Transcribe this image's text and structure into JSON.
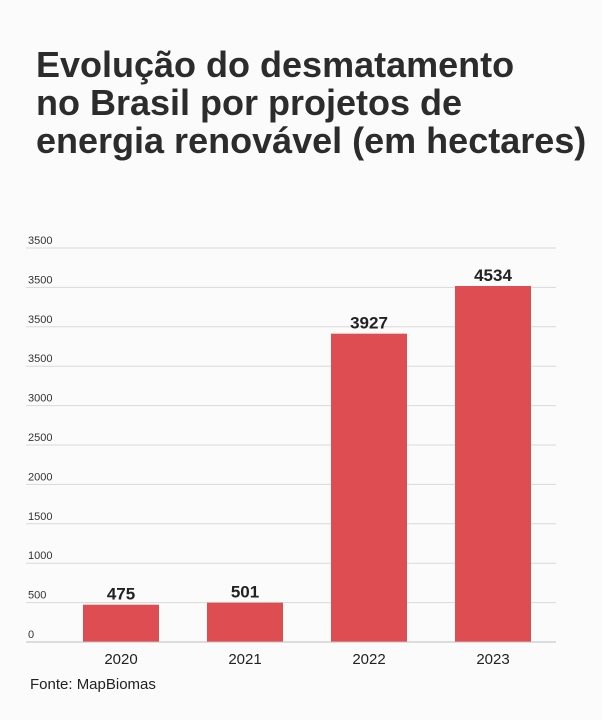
{
  "title_lines": [
    "Evolução do desmatamento",
    "no Brasil por projetos de",
    "energia renovável (em hectares)"
  ],
  "source": "Fonte: MapBiomas",
  "colors": {
    "bar": "#dd4d52",
    "grid": "#d9d9d9",
    "text": "#222222"
  },
  "chart_data": {
    "type": "bar",
    "title": "Evolução do desmatamento no Brasil por projetos de energia renovável (em hectares)",
    "categories": [
      "2020",
      "2021",
      "2022",
      "2023"
    ],
    "values": [
      475,
      501,
      3927,
      4534
    ],
    "data_labels": [
      "475",
      "501",
      "3927",
      "4534"
    ],
    "y_tick_labels": [
      "0",
      "500",
      "1000",
      "1500",
      "2000",
      "2500",
      "3000",
      "3500",
      "3500",
      "3500",
      "3500"
    ],
    "xlabel": "",
    "ylabel": "",
    "grid": true,
    "legend": "none"
  }
}
